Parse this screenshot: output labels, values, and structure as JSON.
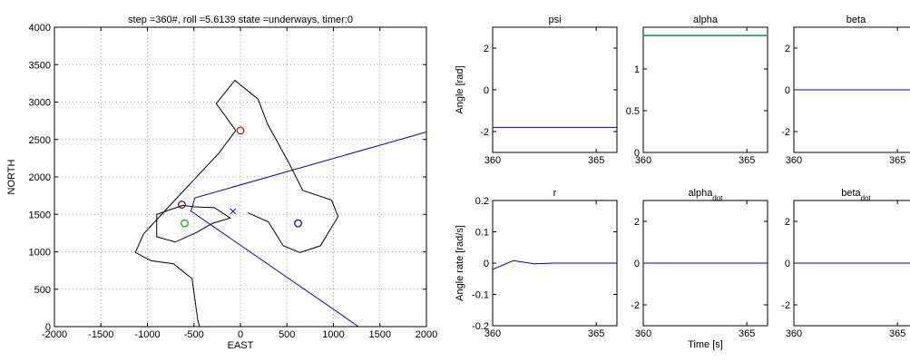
{
  "chart_data": [
    {
      "id": "map",
      "type": "line",
      "title": "step =360#, roll =5.6139 state =underways, timer:0",
      "xlabel": "EAST",
      "ylabel": "NORTH",
      "xlim": [
        -2000,
        2000
      ],
      "ylim": [
        0,
        4000
      ],
      "xticks": [
        -2000,
        -1500,
        -1000,
        -500,
        0,
        500,
        1000,
        1500,
        2000
      ],
      "yticks": [
        0,
        500,
        1000,
        1500,
        2000,
        2500,
        3000,
        3500,
        4000
      ],
      "grid": true,
      "colors": {
        "track": "#0000cc",
        "outline": "#000000",
        "red": "#dd0000",
        "green": "#00aa00",
        "navy": "#000088",
        "maroon": "#770000"
      },
      "outline_outer": [
        [
          -50,
          2620
        ],
        [
          -230,
          2320
        ],
        [
          -720,
          1670
        ],
        [
          -1040,
          1240
        ],
        [
          -1130,
          990
        ],
        [
          -960,
          880
        ],
        [
          -720,
          840
        ],
        [
          -520,
          640
        ],
        [
          -460,
          100
        ],
        [
          -440,
          0
        ]
      ],
      "outline_outer2": [
        [
          -50,
          2620
        ],
        [
          -260,
          2980
        ],
        [
          -60,
          3290
        ],
        [
          190,
          3040
        ],
        [
          290,
          2710
        ],
        [
          520,
          2190
        ],
        [
          670,
          1820
        ],
        [
          980,
          1690
        ],
        [
          1050,
          1470
        ],
        [
          860,
          1080
        ],
        [
          640,
          990
        ],
        [
          460,
          1080
        ],
        [
          300,
          1400
        ],
        [
          80,
          1520
        ]
      ],
      "outline_inner": [
        [
          -620,
          1620
        ],
        [
          -900,
          1500
        ],
        [
          -900,
          1200
        ],
        [
          -700,
          1130
        ],
        [
          -470,
          1260
        ],
        [
          -300,
          1380
        ],
        [
          -110,
          1450
        ],
        [
          -280,
          1590
        ],
        [
          -500,
          1600
        ],
        [
          -620,
          1620
        ]
      ],
      "blue_track": [
        [
          -530,
          1550
        ],
        [
          -490,
          1720
        ],
        [
          2000,
          2600
        ]
      ],
      "blue_track2": [
        [
          -540,
          1550
        ],
        [
          1270,
          0
        ]
      ],
      "circles": [
        {
          "x": 0,
          "y": 2620,
          "color": "red"
        },
        {
          "x": -600,
          "y": 1380,
          "color": "green"
        },
        {
          "x": 620,
          "y": 1380,
          "color": "navy"
        },
        {
          "x": -630,
          "y": 1630,
          "color": "maroon"
        }
      ],
      "cross": {
        "x": -80,
        "y": 1540
      }
    },
    {
      "id": "psi",
      "type": "line",
      "title": "psi",
      "ylabel": "Angle [rad]",
      "xlim": [
        360,
        366
      ],
      "ylim": [
        -3,
        3
      ],
      "xticks": [
        360,
        365
      ],
      "yticks": [
        -2,
        0,
        2
      ],
      "series": [
        {
          "color": "#0000cc",
          "x": [
            360,
            366
          ],
          "y": [
            -1.8,
            -1.8
          ]
        }
      ]
    },
    {
      "id": "alpha",
      "type": "line",
      "title": "alpha",
      "ylabel": "",
      "xlim": [
        360,
        366
      ],
      "ylim": [
        0,
        1.5
      ],
      "xticks": [
        360,
        365
      ],
      "yticks": [
        0,
        0.5,
        1
      ],
      "series": [
        {
          "color": "#00aa55",
          "x": [
            360,
            366
          ],
          "y": [
            1.4,
            1.4
          ]
        }
      ]
    },
    {
      "id": "beta",
      "type": "line",
      "title": "beta",
      "ylabel": "",
      "xlim": [
        360,
        366
      ],
      "ylim": [
        -3,
        3
      ],
      "xticks": [
        360,
        365
      ],
      "yticks": [
        -2,
        0,
        2
      ],
      "series": [
        {
          "color": "#0000cc",
          "x": [
            360,
            366
          ],
          "y": [
            0,
            0
          ]
        }
      ]
    },
    {
      "id": "r",
      "type": "line",
      "title": "r",
      "ylabel": "Angle rate [rad/s]",
      "xlim": [
        360,
        366
      ],
      "ylim": [
        -0.2,
        0.2
      ],
      "xticks": [
        360,
        365
      ],
      "yticks": [
        -0.2,
        -0.1,
        0,
        0.1,
        0.2
      ],
      "series": [
        {
          "color": "#0000cc",
          "x": [
            360,
            361,
            362,
            363,
            366
          ],
          "y": [
            -0.02,
            0.008,
            -0.002,
            0,
            0
          ]
        }
      ]
    },
    {
      "id": "alpha_dot",
      "type": "line",
      "title": "alpha",
      "title_sub": "dot",
      "ylabel": "",
      "xlabel": "Time [s]",
      "xlim": [
        360,
        366
      ],
      "ylim": [
        -3,
        3
      ],
      "xticks": [
        360,
        365
      ],
      "yticks": [
        -2,
        0,
        2
      ],
      "series": [
        {
          "color": "#0000cc",
          "x": [
            360,
            366
          ],
          "y": [
            0,
            0
          ]
        }
      ]
    },
    {
      "id": "beta_dot",
      "type": "line",
      "title": "beta",
      "title_sub": "dot",
      "ylabel": "",
      "xlim": [
        360,
        366
      ],
      "ylim": [
        -3,
        3
      ],
      "xticks": [
        360,
        365
      ],
      "yticks": [
        -2,
        0,
        2
      ],
      "series": [
        {
          "color": "#0000cc",
          "x": [
            360,
            366
          ],
          "y": [
            0,
            0
          ]
        }
      ]
    }
  ]
}
